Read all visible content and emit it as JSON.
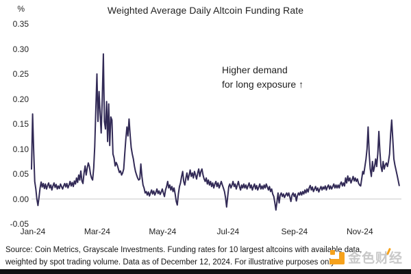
{
  "title": "Weighted Average Daily Altcoin Funding Rate",
  "annotation": {
    "line1": "Higher demand",
    "line2": "for long exposure ↑"
  },
  "source": {
    "line1": "Source: Coin Metrics, Grayscale Investments. Funding rates for 10 largest altcoins with available data,",
    "line2": "weighted by spot trading volume. Data as of December 12, 2024. For illustrative purposes only."
  },
  "watermark": {
    "text": "金色财经",
    "accent_color": "#F6A21C"
  },
  "colors": {
    "line": "#322A56",
    "zero_line": "#D9D9D9",
    "text": "#1F1F1F",
    "bottom_bar": "#121212"
  },
  "y_axis": {
    "unit": "%",
    "ticks": [
      {
        "label": "0.35",
        "value": 0.35
      },
      {
        "label": "0.30",
        "value": 0.3
      },
      {
        "label": "0.25",
        "value": 0.25
      },
      {
        "label": "0.20",
        "value": 0.2
      },
      {
        "label": "0.15",
        "value": 0.15
      },
      {
        "label": "0.10",
        "value": 0.1
      },
      {
        "label": "0.05",
        "value": 0.05
      },
      {
        "label": "0.00",
        "value": 0.0
      },
      {
        "label": "-0.05",
        "value": -0.05
      }
    ]
  },
  "x_axis": {
    "ticks": [
      {
        "label": "Jan-24",
        "day": 0
      },
      {
        "label": "Mar-24",
        "day": 60
      },
      {
        "label": "May-24",
        "day": 121
      },
      {
        "label": "Jul-24",
        "day": 182
      },
      {
        "label": "Sep-24",
        "day": 244
      },
      {
        "label": "Nov-24",
        "day": 305
      }
    ]
  },
  "chart_data": {
    "type": "line",
    "title": "Weighted Average Daily Altcoin Funding Rate",
    "ylabel": "%",
    "ylim": [
      -0.05,
      0.35
    ],
    "x_unit": "days since 2024-01-01 (through Dec 12, 2024)",
    "grid": false,
    "series_name": "Weighted average daily altcoin funding rate (%)",
    "points": [
      [
        0,
        0.06
      ],
      [
        1,
        0.17
      ],
      [
        2,
        0.1
      ],
      [
        3,
        0.035
      ],
      [
        4,
        0.02
      ],
      [
        5,
        0
      ],
      [
        6,
        -0.013
      ],
      [
        7,
        0.004
      ],
      [
        8,
        0.022
      ],
      [
        9,
        0.034
      ],
      [
        10,
        0.024
      ],
      [
        11,
        0.031
      ],
      [
        12,
        0.021
      ],
      [
        13,
        0.03
      ],
      [
        14,
        0.02
      ],
      [
        15,
        0.027
      ],
      [
        16,
        0.032
      ],
      [
        17,
        0.022
      ],
      [
        18,
        0.028
      ],
      [
        19,
        0.018
      ],
      [
        20,
        0.026
      ],
      [
        21,
        0.032
      ],
      [
        22,
        0.023
      ],
      [
        23,
        0.029
      ],
      [
        24,
        0.02
      ],
      [
        25,
        0.026
      ],
      [
        26,
        0.021
      ],
      [
        27,
        0.03
      ],
      [
        28,
        0.025
      ],
      [
        29,
        0.02
      ],
      [
        30,
        0.026
      ],
      [
        31,
        0.031
      ],
      [
        32,
        0.024
      ],
      [
        33,
        0.031
      ],
      [
        34,
        0.022
      ],
      [
        35,
        0.028
      ],
      [
        36,
        0.035
      ],
      [
        37,
        0.026
      ],
      [
        38,
        0.033
      ],
      [
        39,
        0.025
      ],
      [
        40,
        0.036
      ],
      [
        41,
        0.03
      ],
      [
        42,
        0.042
      ],
      [
        43,
        0.033
      ],
      [
        44,
        0.048
      ],
      [
        45,
        0.038
      ],
      [
        46,
        0.056
      ],
      [
        47,
        0.036
      ],
      [
        48,
        0.031
      ],
      [
        49,
        0.052
      ],
      [
        50,
        0.066
      ],
      [
        51,
        0.048
      ],
      [
        52,
        0.062
      ],
      [
        53,
        0.072
      ],
      [
        54,
        0.065
      ],
      [
        55,
        0.05
      ],
      [
        56,
        0.042
      ],
      [
        57,
        0.038
      ],
      [
        58,
        0.062
      ],
      [
        59,
        0.105
      ],
      [
        60,
        0.18
      ],
      [
        61,
        0.25
      ],
      [
        62,
        0.155
      ],
      [
        63,
        0.215
      ],
      [
        64,
        0.17
      ],
      [
        65,
        0.132
      ],
      [
        66,
        0.2
      ],
      [
        67,
        0.29
      ],
      [
        68,
        0.155
      ],
      [
        69,
        0.14
      ],
      [
        70,
        0.195
      ],
      [
        71,
        0.115
      ],
      [
        72,
        0.19
      ],
      [
        73,
        0.107
      ],
      [
        74,
        0.164
      ],
      [
        75,
        0.158
      ],
      [
        76,
        0.09
      ],
      [
        77,
        0.082
      ],
      [
        78,
        0.066
      ],
      [
        79,
        0.073
      ],
      [
        80,
        0.068
      ],
      [
        81,
        0.06
      ],
      [
        82,
        0.053
      ],
      [
        83,
        0.056
      ],
      [
        84,
        0.048
      ],
      [
        85,
        0.052
      ],
      [
        86,
        0.06
      ],
      [
        87,
        0.092
      ],
      [
        88,
        0.12
      ],
      [
        89,
        0.144
      ],
      [
        90,
        0.126
      ],
      [
        91,
        0.16
      ],
      [
        92,
        0.128
      ],
      [
        93,
        0.103
      ],
      [
        94,
        0.09
      ],
      [
        95,
        0.08
      ],
      [
        96,
        0.066
      ],
      [
        97,
        0.055
      ],
      [
        98,
        0.048
      ],
      [
        99,
        0.042
      ],
      [
        100,
        0.038
      ],
      [
        101,
        0.04
      ],
      [
        102,
        0.07
      ],
      [
        103,
        0.045
      ],
      [
        104,
        0.028
      ],
      [
        105,
        0.022
      ],
      [
        106,
        0.012
      ],
      [
        107,
        0.015
      ],
      [
        108,
        0.008
      ],
      [
        109,
        0.014
      ],
      [
        110,
        0.006
      ],
      [
        111,
        0.012
      ],
      [
        112,
        0.018
      ],
      [
        113,
        0.01
      ],
      [
        114,
        0.016
      ],
      [
        115,
        0.008
      ],
      [
        116,
        0.013
      ],
      [
        117,
        0.02
      ],
      [
        118,
        0.011
      ],
      [
        119,
        0.016
      ],
      [
        120,
        0.009
      ],
      [
        121,
        0.014
      ],
      [
        122,
        0.02
      ],
      [
        123,
        0.012
      ],
      [
        124,
        0.005
      ],
      [
        125,
        0.018
      ],
      [
        126,
        0.025
      ],
      [
        127,
        0.035
      ],
      [
        128,
        0.022
      ],
      [
        129,
        0.028
      ],
      [
        130,
        0.018
      ],
      [
        131,
        0.025
      ],
      [
        132,
        0.015
      ],
      [
        133,
        0.022
      ],
      [
        134,
        0.01
      ],
      [
        135,
        -0.005
      ],
      [
        136,
        -0.012
      ],
      [
        137,
        0.01
      ],
      [
        138,
        0.025
      ],
      [
        139,
        0.032
      ],
      [
        140,
        0.045
      ],
      [
        141,
        0.055
      ],
      [
        142,
        0.035
      ],
      [
        143,
        0.028
      ],
      [
        144,
        0.042
      ],
      [
        145,
        0.052
      ],
      [
        146,
        0.038
      ],
      [
        147,
        0.048
      ],
      [
        148,
        0.058
      ],
      [
        149,
        0.045
      ],
      [
        150,
        0.052
      ],
      [
        151,
        0.042
      ],
      [
        152,
        0.055
      ],
      [
        153,
        0.048
      ],
      [
        154,
        0.04
      ],
      [
        155,
        0.052
      ],
      [
        156,
        0.06
      ],
      [
        157,
        0.045
      ],
      [
        158,
        0.055
      ],
      [
        159,
        0.06
      ],
      [
        160,
        0.048
      ],
      [
        161,
        0.04
      ],
      [
        162,
        0.035
      ],
      [
        163,
        0.042
      ],
      [
        164,
        0.03
      ],
      [
        165,
        0.038
      ],
      [
        166,
        0.028
      ],
      [
        167,
        0.035
      ],
      [
        168,
        0.025
      ],
      [
        169,
        0.032
      ],
      [
        170,
        0.022
      ],
      [
        171,
        0.03
      ],
      [
        172,
        0.035
      ],
      [
        173,
        0.025
      ],
      [
        174,
        0.032
      ],
      [
        175,
        0.022
      ],
      [
        176,
        0.028
      ],
      [
        177,
        0.035
      ],
      [
        178,
        0.028
      ],
      [
        179,
        0.022
      ],
      [
        180,
        0.015
      ],
      [
        181,
        0.002
      ],
      [
        182,
        -0.016
      ],
      [
        183,
        0.005
      ],
      [
        184,
        0.025
      ],
      [
        185,
        0.03
      ],
      [
        186,
        0.022
      ],
      [
        187,
        0.028
      ],
      [
        188,
        0.035
      ],
      [
        189,
        0.025
      ],
      [
        190,
        0.03
      ],
      [
        191,
        0.02
      ],
      [
        192,
        0.028
      ],
      [
        193,
        0.035
      ],
      [
        194,
        0.025
      ],
      [
        195,
        0.018
      ],
      [
        196,
        0.028
      ],
      [
        197,
        0.022
      ],
      [
        198,
        0.03
      ],
      [
        199,
        0.022
      ],
      [
        200,
        0.028
      ],
      [
        201,
        0.02
      ],
      [
        202,
        0.026
      ],
      [
        203,
        0.032
      ],
      [
        204,
        0.022
      ],
      [
        205,
        0.028
      ],
      [
        206,
        0.018
      ],
      [
        207,
        0.025
      ],
      [
        208,
        0.03
      ],
      [
        209,
        0.02
      ],
      [
        210,
        0.027
      ],
      [
        211,
        0.018
      ],
      [
        212,
        0.024
      ],
      [
        213,
        0.03
      ],
      [
        214,
        0.02
      ],
      [
        215,
        0.026
      ],
      [
        216,
        0.02
      ],
      [
        217,
        0.028
      ],
      [
        218,
        0.022
      ],
      [
        219,
        0.03
      ],
      [
        220,
        0.024
      ],
      [
        221,
        0.018
      ],
      [
        222,
        0.025
      ],
      [
        223,
        0.015
      ],
      [
        224,
        0.02
      ],
      [
        225,
        0.01
      ],
      [
        226,
        0.005
      ],
      [
        227,
        -0.008
      ],
      [
        228,
        -0.022
      ],
      [
        229,
        -0.005
      ],
      [
        230,
        0.012
      ],
      [
        231,
        -0.008
      ],
      [
        232,
        0.008
      ],
      [
        233,
        0.012
      ],
      [
        234,
        0.005
      ],
      [
        235,
        0.01
      ],
      [
        236,
        0.003
      ],
      [
        237,
        0.008
      ],
      [
        238,
        0.012
      ],
      [
        239,
        0.006
      ],
      [
        240,
        0.012
      ],
      [
        241,
        0.004
      ],
      [
        242,
        -0.005
      ],
      [
        243,
        0.008
      ],
      [
        244,
        0.012
      ],
      [
        245,
        0.005
      ],
      [
        246,
        0.01
      ],
      [
        247,
        -0.004
      ],
      [
        248,
        0.006
      ],
      [
        249,
        0.012
      ],
      [
        250,
        0.008
      ],
      [
        251,
        0.014
      ],
      [
        252,
        0.008
      ],
      [
        253,
        0.015
      ],
      [
        254,
        0.01
      ],
      [
        255,
        0.018
      ],
      [
        256,
        0.012
      ],
      [
        257,
        0.02
      ],
      [
        258,
        0.014
      ],
      [
        259,
        0.022
      ],
      [
        260,
        0.027
      ],
      [
        261,
        0.018
      ],
      [
        262,
        0.024
      ],
      [
        263,
        0.015
      ],
      [
        264,
        0.02
      ],
      [
        265,
        0.025
      ],
      [
        266,
        0.017
      ],
      [
        267,
        0.022
      ],
      [
        268,
        0.014
      ],
      [
        269,
        0.02
      ],
      [
        270,
        0.025
      ],
      [
        271,
        0.018
      ],
      [
        272,
        0.024
      ],
      [
        273,
        0.02
      ],
      [
        274,
        0.026
      ],
      [
        275,
        0.018
      ],
      [
        276,
        0.024
      ],
      [
        277,
        0.028
      ],
      [
        278,
        0.02
      ],
      [
        279,
        0.026
      ],
      [
        280,
        0.02
      ],
      [
        281,
        0.025
      ],
      [
        282,
        0.03
      ],
      [
        283,
        0.022
      ],
      [
        284,
        0.028
      ],
      [
        285,
        0.022
      ],
      [
        286,
        0.028
      ],
      [
        287,
        0.022
      ],
      [
        288,
        0.03
      ],
      [
        289,
        0.034
      ],
      [
        290,
        0.026
      ],
      [
        291,
        0.032
      ],
      [
        292,
        0.026
      ],
      [
        293,
        0.042
      ],
      [
        294,
        0.032
      ],
      [
        295,
        0.046
      ],
      [
        296,
        0.036
      ],
      [
        297,
        0.042
      ],
      [
        298,
        0.032
      ],
      [
        299,
        0.038
      ],
      [
        300,
        0.045
      ],
      [
        301,
        0.036
      ],
      [
        302,
        0.042
      ],
      [
        303,
        0.035
      ],
      [
        304,
        0.04
      ],
      [
        305,
        0.032
      ],
      [
        306,
        0.028
      ],
      [
        307,
        0.026
      ],
      [
        308,
        0.04
      ],
      [
        309,
        0.055
      ],
      [
        310,
        0.05
      ],
      [
        311,
        0.065
      ],
      [
        312,
        0.08
      ],
      [
        313,
        0.1
      ],
      [
        314,
        0.144
      ],
      [
        315,
        0.09
      ],
      [
        316,
        0.06
      ],
      [
        317,
        0.045
      ],
      [
        318,
        0.075
      ],
      [
        319,
        0.055
      ],
      [
        320,
        0.065
      ],
      [
        321,
        0.08
      ],
      [
        322,
        0.065
      ],
      [
        323,
        0.09
      ],
      [
        324,
        0.135
      ],
      [
        325,
        0.095
      ],
      [
        326,
        0.065
      ],
      [
        327,
        0.055
      ],
      [
        328,
        0.075
      ],
      [
        329,
        0.06
      ],
      [
        330,
        0.068
      ],
      [
        331,
        0.072
      ],
      [
        332,
        0.065
      ],
      [
        333,
        0.075
      ],
      [
        334,
        0.09
      ],
      [
        335,
        0.13
      ],
      [
        336,
        0.158
      ],
      [
        337,
        0.12
      ],
      [
        338,
        0.08
      ],
      [
        339,
        0.068
      ],
      [
        340,
        0.058
      ],
      [
        341,
        0.048
      ],
      [
        342,
        0.038
      ],
      [
        343,
        0.027
      ]
    ]
  }
}
